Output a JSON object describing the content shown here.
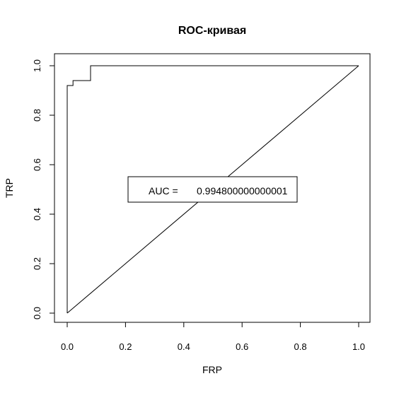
{
  "chart_data": {
    "type": "line",
    "title": "ROC-кривая",
    "xlabel": "FRP",
    "ylabel": "TRP",
    "xlim": [
      0,
      1
    ],
    "ylim": [
      0,
      1
    ],
    "x_ticks": [
      "0.0",
      "0.2",
      "0.4",
      "0.6",
      "0.8",
      "1.0"
    ],
    "y_ticks": [
      "0.0",
      "0.2",
      "0.4",
      "0.6",
      "0.8",
      "1.0"
    ],
    "grid": false,
    "series": [
      {
        "x": [
          0,
          0,
          0,
          0.02,
          0.02,
          0.08,
          0.08,
          1
        ],
        "y": [
          0,
          0.92,
          0.92,
          0.92,
          0.94,
          0.94,
          1,
          1
        ]
      },
      {
        "x": [
          0,
          1
        ],
        "y": [
          0,
          1
        ]
      }
    ],
    "annotation": {
      "label": "AUC = ",
      "value": "0.994800000000001"
    }
  }
}
